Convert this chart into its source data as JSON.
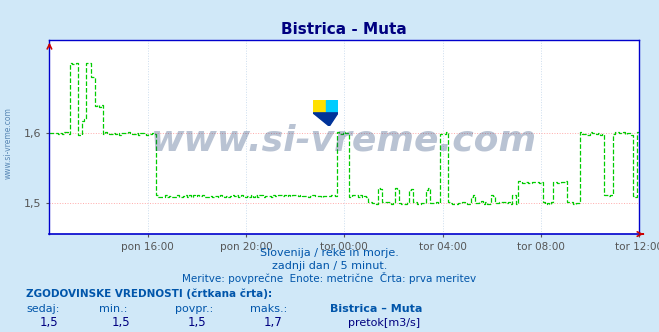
{
  "title": "Bistrica - Muta",
  "title_color": "#000080",
  "bg_color": "#d0e8f8",
  "plot_bg_color": "#ffffff",
  "line_color": "#00cc00",
  "line_style": "--",
  "line_width": 0.9,
  "x_tick_labels": [
    "pon 16:00",
    "pon 20:00",
    "tor 00:00",
    "tor 04:00",
    "tor 08:00",
    "tor 12:00"
  ],
  "ylim_low": 1.455,
  "ylim_high": 1.735,
  "ytick_vals": [
    1.5,
    1.6
  ],
  "ytick_labels": [
    "1,5",
    "1,6"
  ],
  "grid_color_h": "#ffaaaa",
  "grid_color_v": "#ccddee",
  "watermark": "www.si-vreme.com",
  "watermark_color": "#1a3a6e",
  "watermark_alpha": 0.3,
  "watermark_fontsize": 26,
  "subtitle1": "Slovenija / reke in morje.",
  "subtitle2": "zadnji dan / 5 minut.",
  "subtitle3": "Meritve: povprečne  Enote: metrične  Črta: prva meritev",
  "subtitle_color": "#0055aa",
  "label1": "ZGODOVINSKE VREDNOSTI (črtkana črta):",
  "label2_cols": [
    "sedaj:",
    "min.:",
    "povpr.:",
    "maks.:",
    "Bistrica – Muta"
  ],
  "label3_vals": [
    "1,5",
    "1,5",
    "1,5",
    "1,7"
  ],
  "label3_unit": "pretok[m3/s]",
  "label_color": "#0055aa",
  "label_bold_color": "#000080",
  "legend_color": "#00bb00",
  "spine_color": "#0000cc",
  "tick_color": "#555555",
  "arrow_color": "#cc0000",
  "sidebar_text": "www.si-vreme.com",
  "sidebar_color": "#4477aa",
  "n_points": 288
}
